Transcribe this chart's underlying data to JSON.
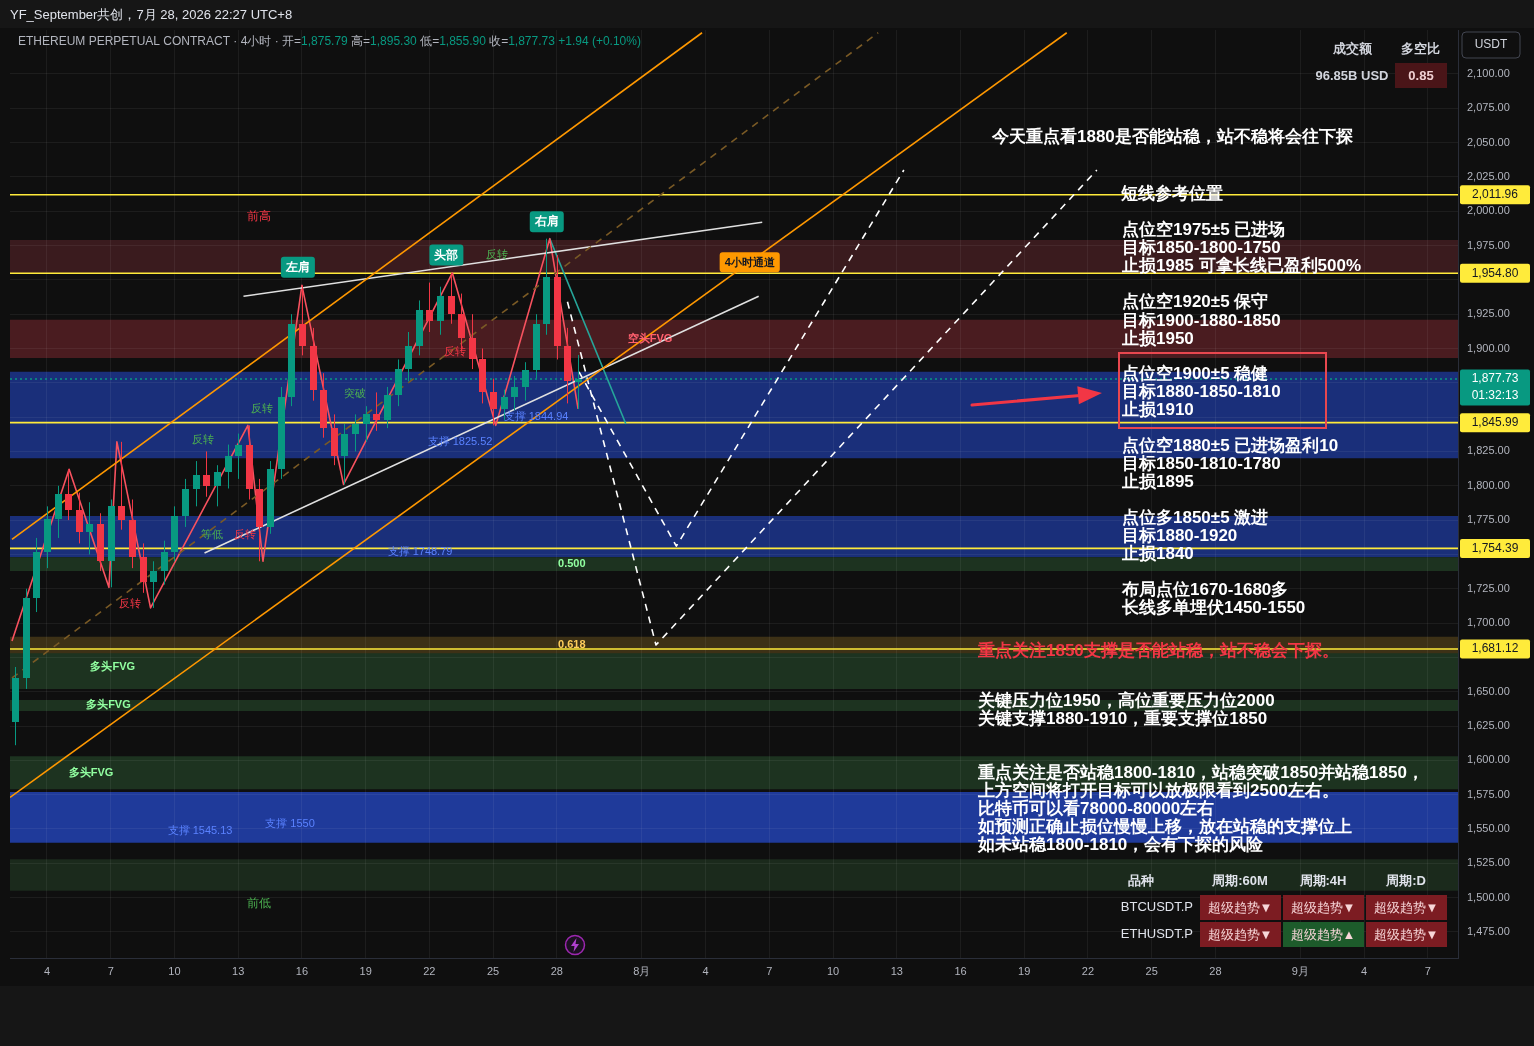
{
  "chart_data": {
    "type": "candlestick",
    "title": "ETHEREUM PERPETUAL CONTRACT · 4小时 · 开=1,875.79 高=1,895.30 低=1,855.90 收=1,877.73 +1.94 (+0.10%)",
    "subtitle": "YF_September共创，7月 28, 2026 22:27 UTC+8",
    "ylabel": "USDT",
    "x": [
      "2026-07-02T12:00",
      "2026-07-03T00:00",
      "2026-07-03T12:00",
      "2026-07-04T00:00",
      "2026-07-04T12:00",
      "2026-07-05T00:00",
      "2026-07-05T12:00",
      "2026-07-06T00:00",
      "2026-07-06T12:00",
      "2026-07-07T00:00",
      "2026-07-07T12:00",
      "2026-07-08T00:00",
      "2026-07-08T12:00",
      "2026-07-09T00:00",
      "2026-07-09T12:00",
      "2026-07-10T00:00",
      "2026-07-10T12:00",
      "2026-07-11T00:00",
      "2026-07-11T12:00",
      "2026-07-12T00:00",
      "2026-07-12T12:00",
      "2026-07-13T00:00",
      "2026-07-13T12:00",
      "2026-07-14T00:00",
      "2026-07-14T12:00",
      "2026-07-15T00:00",
      "2026-07-15T12:00",
      "2026-07-16T00:00",
      "2026-07-16T12:00",
      "2026-07-17T00:00",
      "2026-07-17T12:00",
      "2026-07-18T00:00",
      "2026-07-18T12:00",
      "2026-07-19T00:00",
      "2026-07-19T12:00",
      "2026-07-20T00:00",
      "2026-07-20T12:00",
      "2026-07-21T00:00",
      "2026-07-21T12:00",
      "2026-07-22T00:00",
      "2026-07-22T12:00",
      "2026-07-23T00:00",
      "2026-07-23T12:00",
      "2026-07-24T00:00",
      "2026-07-24T12:00",
      "2026-07-25T00:00",
      "2026-07-25T12:00",
      "2026-07-26T00:00",
      "2026-07-26T12:00",
      "2026-07-27T00:00",
      "2026-07-27T12:00",
      "2026-07-28T00:00",
      "2026-07-28T12:00",
      "2026-07-29T00:00"
    ],
    "ohlc": [
      [
        1628,
        1668,
        1611,
        1660
      ],
      [
        1660,
        1725,
        1652,
        1718
      ],
      [
        1718,
        1762,
        1708,
        1752
      ],
      [
        1752,
        1785,
        1740,
        1776
      ],
      [
        1776,
        1800,
        1762,
        1794
      ],
      [
        1794,
        1812,
        1775,
        1782
      ],
      [
        1782,
        1795,
        1758,
        1766
      ],
      [
        1766,
        1788,
        1750,
        1772
      ],
      [
        1772,
        1780,
        1738,
        1745
      ],
      [
        1745,
        1790,
        1726,
        1785
      ],
      [
        1785,
        1832,
        1768,
        1775
      ],
      [
        1775,
        1790,
        1740,
        1748
      ],
      [
        1748,
        1758,
        1722,
        1730
      ],
      [
        1730,
        1745,
        1711,
        1738
      ],
      [
        1738,
        1760,
        1728,
        1752
      ],
      [
        1752,
        1785,
        1745,
        1778
      ],
      [
        1778,
        1805,
        1770,
        1798
      ],
      [
        1798,
        1818,
        1785,
        1808
      ],
      [
        1808,
        1825,
        1792,
        1800
      ],
      [
        1800,
        1815,
        1785,
        1810
      ],
      [
        1810,
        1830,
        1798,
        1822
      ],
      [
        1822,
        1838,
        1805,
        1830
      ],
      [
        1830,
        1844,
        1790,
        1798
      ],
      [
        1798,
        1805,
        1745,
        1770
      ],
      [
        1770,
        1818,
        1765,
        1812
      ],
      [
        1812,
        1872,
        1805,
        1865
      ],
      [
        1865,
        1925,
        1858,
        1918
      ],
      [
        1918,
        1946,
        1895,
        1902
      ],
      [
        1902,
        1915,
        1862,
        1870
      ],
      [
        1870,
        1882,
        1835,
        1842
      ],
      [
        1842,
        1852,
        1815,
        1822
      ],
      [
        1822,
        1845,
        1801,
        1838
      ],
      [
        1838,
        1852,
        1825,
        1845
      ],
      [
        1845,
        1858,
        1832,
        1852
      ],
      [
        1852,
        1868,
        1840,
        1848
      ],
      [
        1848,
        1872,
        1842,
        1866
      ],
      [
        1866,
        1892,
        1858,
        1885
      ],
      [
        1885,
        1912,
        1876,
        1902
      ],
      [
        1902,
        1935,
        1895,
        1928
      ],
      [
        1928,
        1948,
        1912,
        1920
      ],
      [
        1920,
        1945,
        1910,
        1938
      ],
      [
        1938,
        1955,
        1918,
        1925
      ],
      [
        1925,
        1940,
        1898,
        1908
      ],
      [
        1908,
        1925,
        1885,
        1892
      ],
      [
        1892,
        1900,
        1860,
        1868
      ],
      [
        1868,
        1878,
        1844,
        1856
      ],
      [
        1856,
        1870,
        1848,
        1865
      ],
      [
        1865,
        1880,
        1855,
        1872
      ],
      [
        1872,
        1890,
        1862,
        1884
      ],
      [
        1884,
        1925,
        1878,
        1918
      ],
      [
        1918,
        1980,
        1910,
        1952
      ],
      [
        1952,
        1968,
        1892,
        1902
      ],
      [
        1902,
        1915,
        1860,
        1876
      ],
      [
        1875.79,
        1895.3,
        1855.9,
        1877.73
      ]
    ],
    "colors": [
      "#089981",
      "#089981",
      "#089981",
      "#089981",
      "#089981",
      "#f23645",
      "#f23645",
      "#089981",
      "#f23645",
      "#089981",
      "#f23645",
      "#f23645",
      "#f23645",
      "#089981",
      "#089981",
      "#089981",
      "#089981",
      "#089981",
      "#f23645",
      "#089981",
      "#089981",
      "#089981",
      "#f23645",
      "#f23645",
      "#089981",
      "#089981",
      "#089981",
      "#f23645",
      "#f23645",
      "#f23645",
      "#f23645",
      "#089981",
      "#089981",
      "#089981",
      "#f23645",
      "#089981",
      "#089981",
      "#089981",
      "#089981",
      "#f23645",
      "#089981",
      "#f23645",
      "#f23645",
      "#f23645",
      "#f23645",
      "#f23645",
      "#089981",
      "#089981",
      "#089981",
      "#089981",
      "#089981",
      "#f23645",
      "#f23645",
      "#089981"
    ],
    "series": [
      {
        "type": "line",
        "color": "#ff9800",
        "x": [
          "2026-07-02T08:30",
          "2026-08-03T20:00"
        ],
        "values": [
          1761,
          2130
        ]
      },
      {
        "type": "line",
        "name": "4小时通道",
        "color": "#ff9800",
        "x": [
          "2026-07-02T06:15",
          "2026-08-21T00:00"
        ],
        "values": [
          1573,
          2130
        ]
      },
      {
        "type": "line",
        "color": "#7a5a25",
        "line_style": "dashed",
        "x": [
          "2026-07-02T08:30",
          "2026-08-12T03:00"
        ],
        "values": [
          1660,
          2130
        ]
      },
      {
        "type": "line",
        "color": "#e0e0e0",
        "x": [
          "2026-07-13T06:00",
          "2026-08-06T16:00"
        ],
        "values": [
          1938,
          1992
        ]
      },
      {
        "type": "line",
        "color": "#e0e0e0",
        "x": [
          "2026-07-11T10:00",
          "2026-08-06T12:00"
        ],
        "values": [
          1751,
          1938
        ]
      },
      {
        "type": "line",
        "color": "#f7525f",
        "x": [
          "2026-07-02T08:30",
          "2026-07-05T01:00",
          "2026-07-06T22:00",
          "2026-07-07T07:00",
          "2026-07-08T21:00",
          "2026-07-13T11:00",
          "2026-07-14T04:00",
          "2026-07-16T00:00",
          "2026-07-17T23:00",
          "2026-07-23T02:00",
          "2026-07-25T03:00",
          "2026-07-27T16:00",
          "2026-07-29T00:00"
        ],
        "values": [
          1687,
          1812,
          1726,
          1832,
          1711,
          1844,
          1745,
          1946,
          1801,
          1955,
          1844,
          1980,
          1856
        ]
      },
      {
        "type": "line",
        "color": "#26a69a",
        "x": [
          "2026-07-27T16:00",
          "2026-07-31T06:00"
        ],
        "values": [
          1980,
          1845
        ]
      },
      {
        "type": "line",
        "color": "#ffffff",
        "line_style": "dashed",
        "x": [
          "2026-07-28T12:00",
          "2026-08-01T16:00",
          "2026-08-22T10:00"
        ],
        "values": [
          1934,
          1684,
          2030
        ]
      },
      {
        "type": "line",
        "color": "#ffffff",
        "line_style": "dashed",
        "x": [
          "2026-07-29T01:00",
          "2026-08-02T15:00",
          "2026-08-13T08:00"
        ],
        "values": [
          1883,
          1756,
          2030
        ]
      }
    ],
    "xlim": [
      "2026-07-02T06:15",
      "2026-09-08T10:00"
    ],
    "xticks": [
      {
        "value": "2026-07-04",
        "label": "4"
      },
      {
        "value": "2026-07-07",
        "label": "7"
      },
      {
        "value": "2026-07-10",
        "label": "10"
      },
      {
        "value": "2026-07-13",
        "label": "13"
      },
      {
        "value": "2026-07-16",
        "label": "16"
      },
      {
        "value": "2026-07-19",
        "label": "19"
      },
      {
        "value": "2026-07-22",
        "label": "22"
      },
      {
        "value": "2026-07-25",
        "label": "25"
      },
      {
        "value": "2026-07-28",
        "label": "28"
      },
      {
        "value": "2026-08-01",
        "label": "8月"
      },
      {
        "value": "2026-08-04",
        "label": "4"
      },
      {
        "value": "2026-08-07",
        "label": "7"
      },
      {
        "value": "2026-08-10",
        "label": "10"
      },
      {
        "value": "2026-08-13",
        "label": "13"
      },
      {
        "value": "2026-08-16",
        "label": "16"
      },
      {
        "value": "2026-08-19",
        "label": "19"
      },
      {
        "value": "2026-08-22",
        "label": "22"
      },
      {
        "value": "2026-08-25",
        "label": "25"
      },
      {
        "value": "2026-08-28",
        "label": "28"
      },
      {
        "value": "2026-09-01",
        "label": "9月"
      },
      {
        "value": "2026-09-04",
        "label": "4"
      },
      {
        "value": "2026-09-07",
        "label": "7"
      }
    ],
    "ylim": [
      1456,
      2132
    ],
    "yticks": [
      {
        "value": 1475,
        "label": "1,475.00"
      },
      {
        "value": 1500,
        "label": "1,500.00"
      },
      {
        "value": 1525,
        "label": "1,525.00"
      },
      {
        "value": 1550,
        "label": "1,550.00"
      },
      {
        "value": 1575,
        "label": "1,575.00"
      },
      {
        "value": 1600,
        "label": "1,600.00"
      },
      {
        "value": 1625,
        "label": "1,625.00"
      },
      {
        "value": 1650,
        "label": "1,650.00"
      },
      {
        "value": 1675,
        "label": null
      },
      {
        "value": 1700,
        "label": "1,700.00"
      },
      {
        "value": 1725,
        "label": "1,725.00"
      },
      {
        "value": 1750,
        "label": null
      },
      {
        "value": 1775,
        "label": "1,775.00"
      },
      {
        "value": 1800,
        "label": "1,800.00"
      },
      {
        "value": 1825,
        "label": "1,825.00"
      },
      {
        "value": 1850,
        "label": null
      },
      {
        "value": 1875,
        "label": null
      },
      {
        "value": 1900,
        "label": "1,900.00"
      },
      {
        "value": 1925,
        "label": "1,925.00"
      },
      {
        "value": 1950,
        "label": null
      },
      {
        "value": 1975,
        "label": "1,975.00"
      },
      {
        "value": 2000,
        "label": "2,000.00"
      },
      {
        "value": 2025,
        "label": "2,025.00"
      },
      {
        "value": 2050,
        "label": "2,050.00"
      },
      {
        "value": 2075,
        "label": "2,075.00"
      },
      {
        "value": 2100,
        "label": "2,100.00"
      }
    ],
    "grid": true,
    "bands": [
      {
        "axis": "y",
        "from": 1955,
        "to": 1979,
        "color": "#3a1b1e"
      },
      {
        "axis": "y",
        "from": 1893,
        "to": 1921,
        "color": "#4a1c20",
        "label": "空头FVG"
      },
      {
        "axis": "y",
        "from": 1820,
        "to": 1883,
        "color": "#1a2f7a"
      },
      {
        "axis": "y",
        "from": 1748,
        "to": 1778,
        "color": "#1a2f7a"
      },
      {
        "axis": "y",
        "from": 1738,
        "to": 1748,
        "color": "#1d3320",
        "label": "0.500"
      },
      {
        "axis": "y",
        "from": 1652,
        "to": 1684,
        "color": "#1d3320",
        "label": "多头FVG"
      },
      {
        "axis": "y",
        "from": 1678,
        "to": 1690,
        "color": "#3d3116",
        "label": "0.618"
      },
      {
        "axis": "y",
        "from": 1636,
        "to": 1644,
        "color": "#1d3320",
        "label": "多头FVG"
      },
      {
        "axis": "y",
        "from": 1579,
        "to": 1603,
        "color": "#1d3320",
        "label": "多头FVG"
      },
      {
        "axis": "y",
        "from": 1540,
        "to": 1577,
        "color": "#1f3a9a"
      },
      {
        "axis": "y",
        "from": 1505,
        "to": 1528,
        "color": "#1b2a1c"
      }
    ],
    "ref_lines": [
      {
        "axis": "y",
        "value": 2011.96,
        "label": "2,011.96",
        "color": "#ffeb3b"
      },
      {
        "axis": "y",
        "value": 1954.8,
        "label": "1,954.80",
        "color": "#ffeb3b"
      },
      {
        "axis": "y",
        "value": 1877.73,
        "label": "1,877.73\n01:32:13",
        "color": "#089981",
        "line_style": "dotted"
      },
      {
        "axis": "y",
        "value": 1845.99,
        "label": "1,845.99",
        "color": "#ffeb3b"
      },
      {
        "axis": "y",
        "value": 1754.39,
        "label": "1,754.39",
        "color": "#ffeb3b"
      },
      {
        "axis": "y",
        "value": 1681.12,
        "label": "1,681.12",
        "color": "#ffeb3b"
      }
    ],
    "annotations": [
      "成交额",
      "多空比",
      "96.85B USD",
      "0.85",
      "品种",
      "周期:60M",
      "周期:4H",
      "周期:D",
      "BTCUSDT.P",
      "超级趋势▼",
      "超级趋势▼",
      "超级趋势▼",
      "ETHUSDT.P",
      "超级趋势▼",
      "超级趋势▲",
      "超级趋势▼",
      "前高",
      "反转",
      "反转",
      "突破",
      "反转",
      "反转",
      "等低",
      "反转",
      "反转",
      "支撑 1844.94",
      "支撑 1825.52",
      "支撑 1748.79",
      "支撑 1550",
      "支撑 1545.13",
      "前低",
      "今天重点看1880是否能站稳，站不稳将会往下探",
      "点位空1975±5  已进场",
      "目标1850-1800-1750",
      "止损1985  可拿长线已盈利500%",
      "点位空1920±5  保守",
      "目标1900-1880-1850",
      "止损1950",
      "点位空1900±5  稳健",
      "目标1880-1850-1810",
      "止损1910",
      "点位空1880±5  已进场盈利10",
      "目标1850-1810-1780",
      "止损1895",
      "点位多1850±5  激进",
      "目标1880-1920",
      "止损1840",
      "布局点位1670-1680多",
      "长线多单埋伏1450-1550",
      "重点关注1850支撑是否能站稳，站不稳会下探。",
      "关键压力位1950，高位重要压力位2000",
      "关键支撑1880-1910，重要支撑位1850",
      "重点关注是否站稳1800-1810，站稳突破1850并站稳1850，",
      "上方空间将打开目标可以放极限看到2500左右。",
      "比特币可以看78000-80000左右",
      "如预测正确止损位慢慢上移，放在站稳的支撑位上",
      "如未站稳1800-1810，会有下探的风险",
      {
        "text": "左肩",
        "x": "2026-07-16T00:00",
        "y": 1946
      },
      {
        "text": "头部",
        "x": "2026-07-23T02:00",
        "y": 1955
      },
      {
        "text": "右肩",
        "x": "2026-07-27T16:00",
        "y": 1980
      },
      {
        "text": "短线参考位置",
        "x": "2026-08-23T13:00",
        "y": 2011.96
      }
    ]
  }
}
